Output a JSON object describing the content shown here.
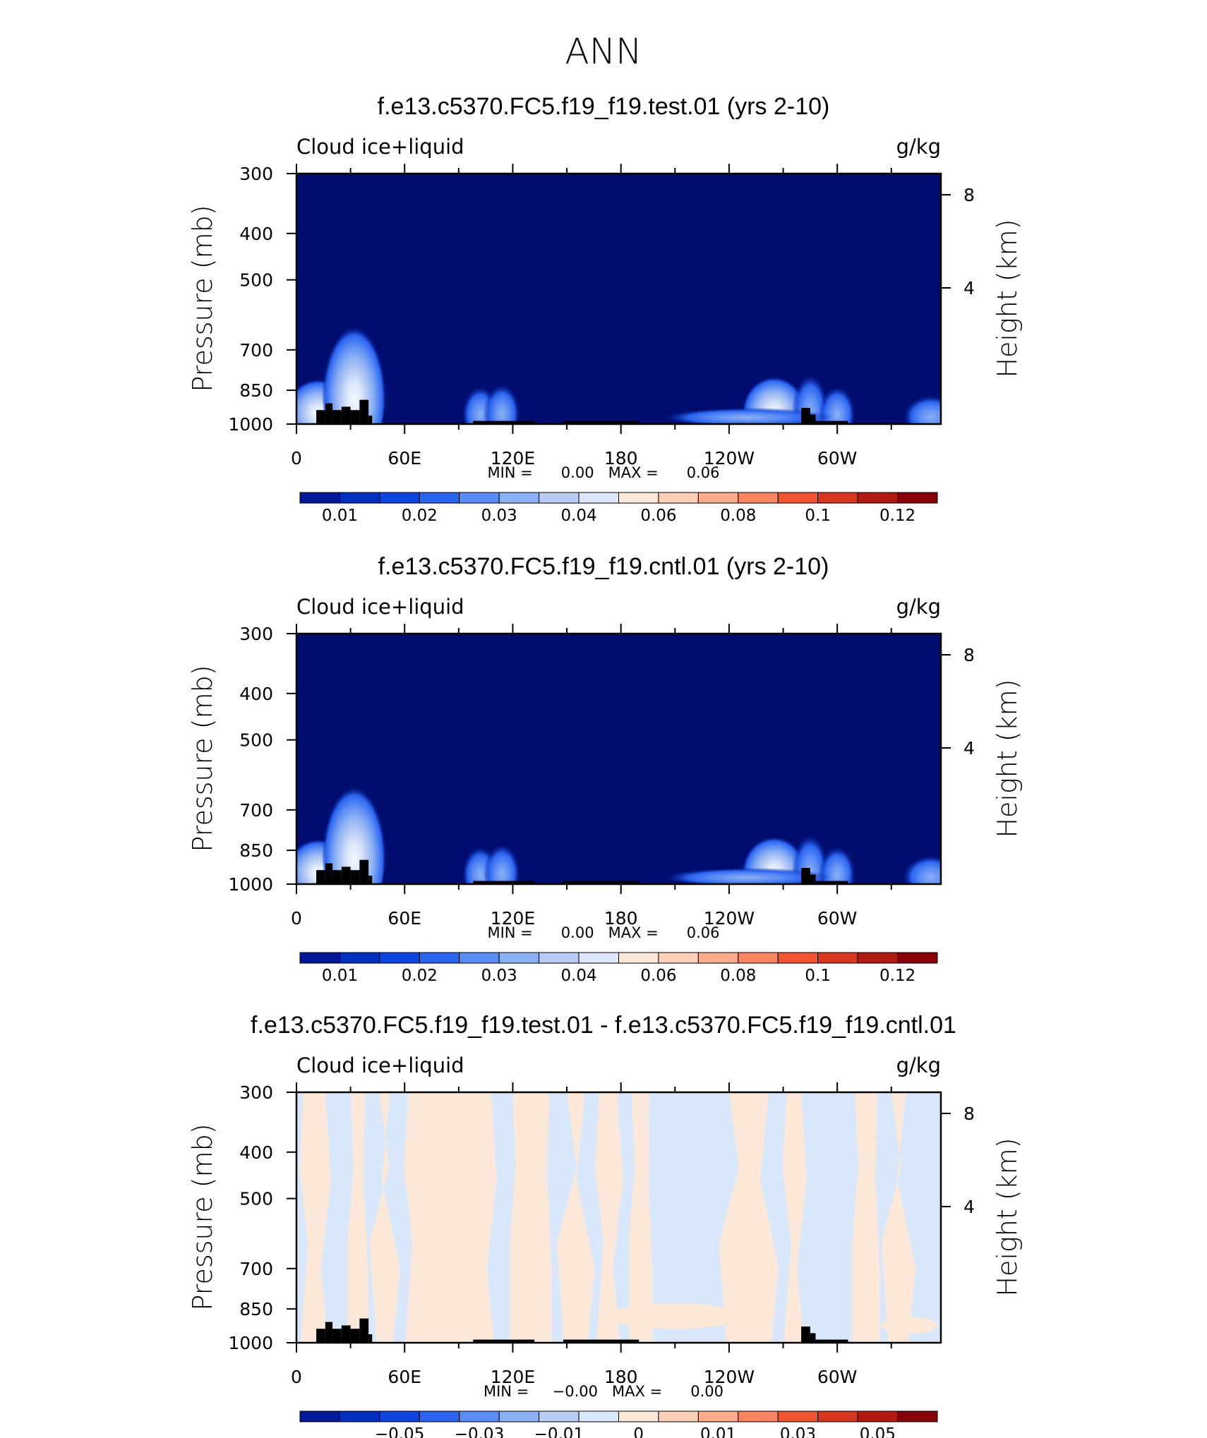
{
  "figure": {
    "title": "ANN"
  },
  "colors": {
    "land": "#000000",
    "absolute_levels": [
      "#000c6e",
      "#001996",
      "#0030c0",
      "#0e44e0",
      "#2a64f0",
      "#5a8cf4",
      "#8cb0f4",
      "#b8ccf4",
      "#dce8fa",
      "#fce8d8",
      "#fcd0b8",
      "#fcac8c",
      "#f88460",
      "#f05430",
      "#d8361e",
      "#b01a10",
      "#880008"
    ],
    "difference_levels": [
      "#000c6e",
      "#001996",
      "#0030c0",
      "#0e44e0",
      "#2a64f0",
      "#5a8cf4",
      "#8cb0f4",
      "#b8ccf4",
      "#d8e8fa",
      "#fce8d8",
      "#fcd0b8",
      "#fcac8c",
      "#f88460",
      "#f05430",
      "#d8361e",
      "#b01a10",
      "#880008"
    ]
  },
  "panels": [
    {
      "title": "f.e13.c5370.FC5.f19_f19.test.01 (yrs 2-10)",
      "variable": "Cloud ice+liquid",
      "units": "g/kg",
      "ylabel": "Pressure (mb)",
      "ylabel_right": "Height (km)",
      "min_max": "MIN =      0.00   MAX =      0.06",
      "colorbar_labels": [
        "0.01",
        "0.02",
        "0.03",
        "0.04",
        "0.06",
        "0.08",
        "0.1",
        "0.12"
      ]
    },
    {
      "title": "f.e13.c5370.FC5.f19_f19.cntl.01 (yrs 2-10)",
      "variable": "Cloud ice+liquid",
      "units": "g/kg",
      "ylabel": "Pressure (mb)",
      "ylabel_right": "Height (km)",
      "min_max": "MIN =      0.00   MAX =      0.06",
      "colorbar_labels": [
        "0.01",
        "0.02",
        "0.03",
        "0.04",
        "0.06",
        "0.08",
        "0.1",
        "0.12"
      ]
    },
    {
      "title": "f.e13.c5370.FC5.f19_f19.test.01 - f.e13.c5370.FC5.f19_f19.cntl.01",
      "variable": "Cloud ice+liquid",
      "units": "g/kg",
      "ylabel": "Pressure (mb)",
      "ylabel_right": "Height (km)",
      "min_max": "MIN =     −0.00   MAX =      0.00",
      "colorbar_labels": [
        "−0.05",
        "−0.03",
        "−0.01",
        "0",
        "0.01",
        "0.03",
        "0.05"
      ]
    }
  ],
  "chart_data": [
    {
      "type": "heatmap",
      "title": "f.e13.c5370.FC5.f19_f19.test.01 (yrs 2-10)",
      "xlabel": "",
      "ylabel": "Pressure (mb)",
      "ylabel_right": "Height (km)",
      "x_ticks": [
        "0",
        "60E",
        "120E",
        "180",
        "120W",
        "60W"
      ],
      "x_tick_lon": [
        0,
        60,
        120,
        180,
        240,
        300
      ],
      "xlim": [
        0,
        357.5
      ],
      "y_ticks": [
        300,
        400,
        500,
        700,
        850,
        1000
      ],
      "ylim": [
        1000,
        300
      ],
      "y_scale": "log",
      "right_ticks_km": [
        8,
        4
      ],
      "min": 0.0,
      "max": 0.06,
      "colorbar_levels": [
        0.01,
        0.02,
        0.03,
        0.04,
        0.06,
        0.08,
        0.1,
        0.12
      ],
      "features": [
        {
          "lon": 12,
          "p_top": 790,
          "peak": 0.06
        },
        {
          "lon": 32,
          "p_top": 600,
          "peak": 0.05
        },
        {
          "lon": 102,
          "p_top": 820,
          "peak": 0.03
        },
        {
          "lon": 114,
          "p_top": 810,
          "peak": 0.03
        },
        {
          "lon": 265,
          "p_top": 780,
          "peak": 0.06
        },
        {
          "lon": 285,
          "p_top": 770,
          "peak": 0.04
        },
        {
          "lon": 300,
          "p_top": 820,
          "peak": 0.03
        },
        {
          "lon": 352,
          "p_top": 860,
          "peak": 0.02
        }
      ]
    },
    {
      "type": "heatmap",
      "title": "f.e13.c5370.FC5.f19_f19.cntl.01 (yrs 2-10)",
      "xlabel": "",
      "ylabel": "Pressure (mb)",
      "ylabel_right": "Height (km)",
      "x_ticks": [
        "0",
        "60E",
        "120E",
        "180",
        "120W",
        "60W"
      ],
      "x_tick_lon": [
        0,
        60,
        120,
        180,
        240,
        300
      ],
      "xlim": [
        0,
        357.5
      ],
      "y_ticks": [
        300,
        400,
        500,
        700,
        850,
        1000
      ],
      "ylim": [
        1000,
        300
      ],
      "y_scale": "log",
      "right_ticks_km": [
        8,
        4
      ],
      "min": 0.0,
      "max": 0.06,
      "colorbar_levels": [
        0.01,
        0.02,
        0.03,
        0.04,
        0.06,
        0.08,
        0.1,
        0.12
      ],
      "features": [
        {
          "lon": 12,
          "p_top": 790,
          "peak": 0.06
        },
        {
          "lon": 32,
          "p_top": 600,
          "peak": 0.05
        },
        {
          "lon": 102,
          "p_top": 820,
          "peak": 0.03
        },
        {
          "lon": 114,
          "p_top": 810,
          "peak": 0.03
        },
        {
          "lon": 265,
          "p_top": 780,
          "peak": 0.06
        },
        {
          "lon": 285,
          "p_top": 770,
          "peak": 0.04
        },
        {
          "lon": 300,
          "p_top": 820,
          "peak": 0.03
        },
        {
          "lon": 352,
          "p_top": 860,
          "peak": 0.02
        }
      ]
    },
    {
      "type": "heatmap",
      "title": "f.e13.c5370.FC5.f19_f19.test.01 - f.e13.c5370.FC5.f19_f19.cntl.01",
      "xlabel": "",
      "ylabel": "Pressure (mb)",
      "ylabel_right": "Height (km)",
      "x_ticks": [
        "0",
        "60E",
        "120E",
        "180",
        "120W",
        "60W"
      ],
      "x_tick_lon": [
        0,
        60,
        120,
        180,
        240,
        300
      ],
      "xlim": [
        0,
        357.5
      ],
      "y_ticks": [
        300,
        400,
        500,
        700,
        850,
        1000
      ],
      "ylim": [
        1000,
        300
      ],
      "y_scale": "log",
      "right_ticks_km": [
        8,
        4
      ],
      "min": -0.0,
      "max": 0.0,
      "colorbar_levels": [
        -0.05,
        -0.03,
        -0.01,
        0,
        0.01,
        0.03,
        0.05
      ],
      "positive_bands_lon": [
        [
          4,
          16
        ],
        [
          30,
          38
        ],
        [
          46,
          52
        ],
        [
          62,
          108
        ],
        [
          120,
          140
        ],
        [
          150,
          160
        ],
        [
          168,
          178
        ],
        [
          186,
          196
        ],
        [
          240,
          262
        ],
        [
          272,
          280
        ],
        [
          310,
          322
        ],
        [
          330,
          338
        ]
      ]
    }
  ],
  "land_mask": [
    {
      "lon0": 11,
      "lon1": 16,
      "p_top": 935
    },
    {
      "lon0": 16,
      "lon1": 20,
      "p_top": 905
    },
    {
      "lon0": 20,
      "lon1": 25,
      "p_top": 935
    },
    {
      "lon0": 25,
      "lon1": 30,
      "p_top": 920
    },
    {
      "lon0": 30,
      "lon1": 35,
      "p_top": 935
    },
    {
      "lon0": 35,
      "lon1": 40,
      "p_top": 890
    },
    {
      "lon0": 40,
      "lon1": 42,
      "p_top": 960
    },
    {
      "lon0": 98,
      "lon1": 132,
      "p_top": 985
    },
    {
      "lon0": 148,
      "lon1": 190,
      "p_top": 985
    },
    {
      "lon0": 280,
      "lon1": 285,
      "p_top": 925
    },
    {
      "lon0": 285,
      "lon1": 288,
      "p_top": 955
    },
    {
      "lon0": 288,
      "lon1": 306,
      "p_top": 985
    }
  ]
}
